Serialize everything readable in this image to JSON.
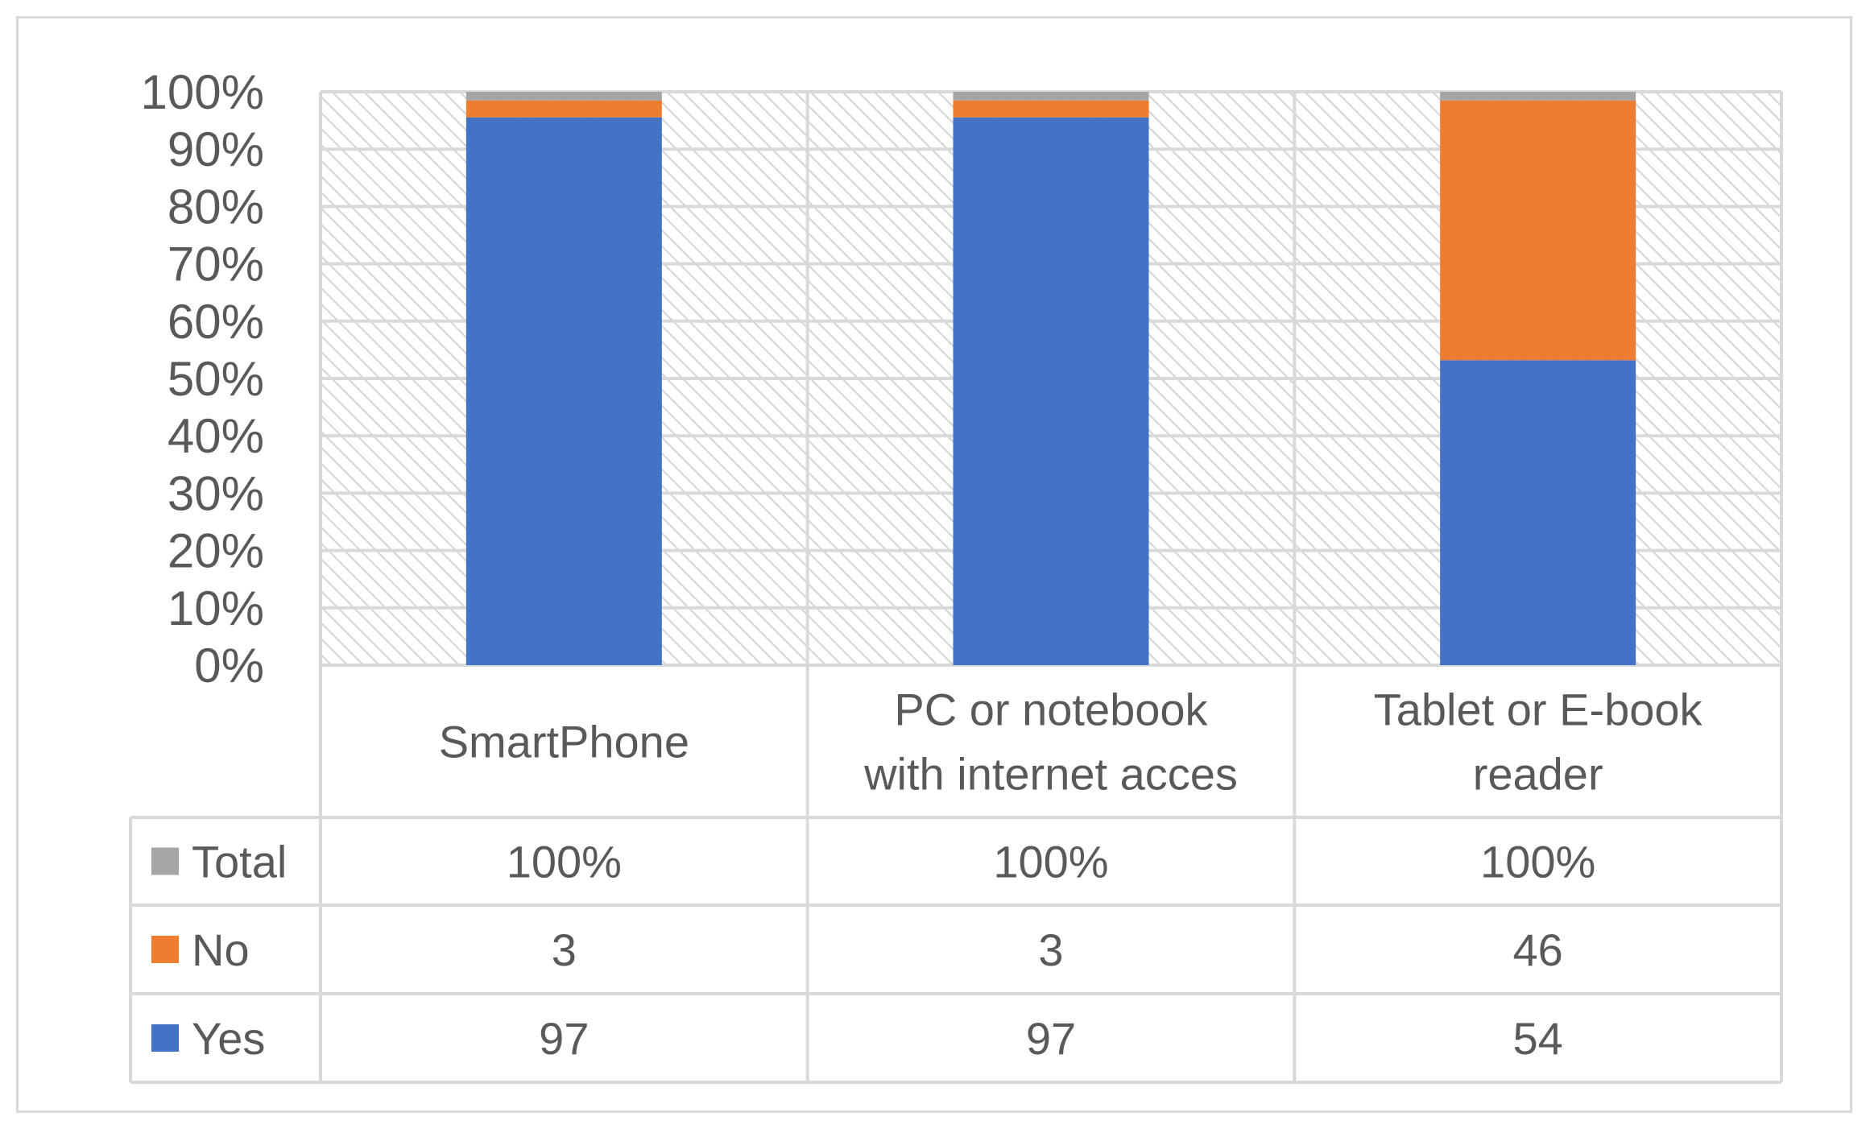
{
  "chart_data": {
    "type": "bar",
    "stacked": true,
    "percent_stacked": true,
    "with_data_table": true,
    "categories": [
      [
        "SmartPhone"
      ],
      [
        "PC or notebook",
        "with internet acces"
      ],
      [
        "Tablet or E-book",
        "reader"
      ]
    ],
    "series": [
      {
        "name": "Yes",
        "values": [
          97,
          97,
          54
        ],
        "color": "#4472c4",
        "labels": [
          "97",
          "97",
          "54"
        ]
      },
      {
        "name": "No",
        "values": [
          3,
          3,
          46
        ],
        "color": "#ed7d31",
        "labels": [
          "3",
          "3",
          "46"
        ]
      },
      {
        "name": "Total",
        "values": [
          100,
          100,
          100
        ],
        "color": "#a5a5a5",
        "labels": [
          "100%",
          "100%",
          "100%"
        ]
      }
    ],
    "yticks": [
      "0%",
      "10%",
      "20%",
      "30%",
      "40%",
      "50%",
      "60%",
      "70%",
      "80%",
      "90%",
      "100%"
    ],
    "ylim": [
      0,
      100
    ],
    "grid": true,
    "legend": "data-table-left",
    "colors": {
      "grid": "#d9d9d9",
      "hatch": "#d0d0d0",
      "text": "#595959"
    }
  }
}
